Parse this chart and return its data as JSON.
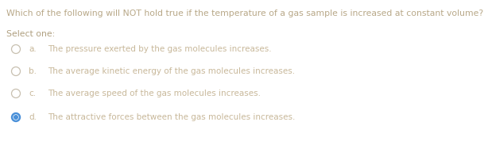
{
  "question": "Which of the following will NOT hold true if the temperature of a gas sample is increased at constant volume?",
  "select_label": "Select one:",
  "options": [
    {
      "letter": "a.",
      "text": "The pressure exerted by the gas molecules increases.",
      "selected": false
    },
    {
      "letter": "b.",
      "text": "The average kinetic energy of the gas molecules increases.",
      "selected": false
    },
    {
      "letter": "c.",
      "text": "The average speed of the gas molecules increases.",
      "selected": false
    },
    {
      "letter": "d.",
      "text": "The attractive forces between the gas molecules increases.",
      "selected": true
    }
  ],
  "bg_color": "#ffffff",
  "text_color": "#c8b89a",
  "question_color": "#b8a888",
  "select_color": "#b0a080",
  "radio_empty_edge": "#c8c0b0",
  "radio_filled_color": "#4a90d9",
  "radio_filled_edge": "#3a80c9",
  "question_fontsize": 7.8,
  "option_fontsize": 7.5,
  "select_fontsize": 7.8
}
